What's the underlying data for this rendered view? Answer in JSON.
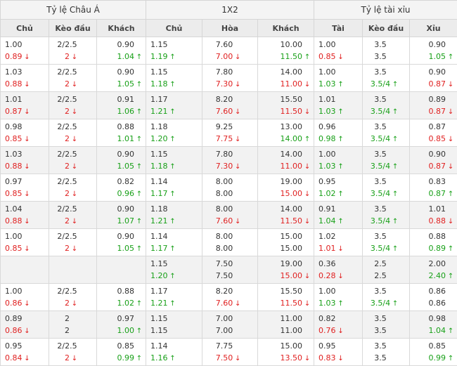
{
  "groups": [
    "Tỷ lệ Châu Á",
    "1X2",
    "Tỷ lệ tài xỉu"
  ],
  "columns": [
    "Chủ",
    "Kèo đầu",
    "Khách",
    "Chủ",
    "Hòa",
    "Khách",
    "Tài",
    "Kèo đầu",
    "Xỉu"
  ],
  "rows": [
    {
      "shade": false,
      "top": [
        "1.00",
        "2/2.5",
        "0.90",
        "1.15",
        "7.60",
        "10.00",
        "1.00",
        "3.5",
        "0.90"
      ],
      "bottom": [
        [
          "0.89",
          "down"
        ],
        [
          "2",
          "down"
        ],
        [
          "1.04",
          "up"
        ],
        [
          "1.19",
          "up"
        ],
        [
          "7.00",
          "down"
        ],
        [
          "11.50",
          "up"
        ],
        [
          "0.85",
          "down"
        ],
        [
          "3.5",
          ""
        ],
        [
          "1.05",
          "up"
        ]
      ]
    },
    {
      "shade": false,
      "top": [
        "1.03",
        "2/2.5",
        "0.90",
        "1.15",
        "7.80",
        "14.00",
        "1.00",
        "3.5",
        "0.90"
      ],
      "bottom": [
        [
          "0.88",
          "down"
        ],
        [
          "2",
          "down"
        ],
        [
          "1.05",
          "up"
        ],
        [
          "1.18",
          "up"
        ],
        [
          "7.30",
          "down"
        ],
        [
          "11.00",
          "down"
        ],
        [
          "1.03",
          "up"
        ],
        [
          "3.5/4",
          "up"
        ],
        [
          "0.87",
          "down"
        ]
      ]
    },
    {
      "shade": true,
      "top": [
        "1.01",
        "2/2.5",
        "0.91",
        "1.17",
        "8.20",
        "15.50",
        "1.01",
        "3.5",
        "0.89"
      ],
      "bottom": [
        [
          "0.87",
          "down"
        ],
        [
          "2",
          "down"
        ],
        [
          "1.06",
          "up"
        ],
        [
          "1.21",
          "up"
        ],
        [
          "7.60",
          "down"
        ],
        [
          "11.50",
          "down"
        ],
        [
          "1.03",
          "up"
        ],
        [
          "3.5/4",
          "up"
        ],
        [
          "0.87",
          "down"
        ]
      ]
    },
    {
      "shade": false,
      "top": [
        "0.98",
        "2/2.5",
        "0.88",
        "1.18",
        "9.25",
        "13.00",
        "0.96",
        "3.5",
        "0.87"
      ],
      "bottom": [
        [
          "0.85",
          "down"
        ],
        [
          "2",
          "down"
        ],
        [
          "1.01",
          "up"
        ],
        [
          "1.20",
          "up"
        ],
        [
          "7.75",
          "down"
        ],
        [
          "14.00",
          "up"
        ],
        [
          "0.98",
          "up"
        ],
        [
          "3.5/4",
          "up"
        ],
        [
          "0.85",
          "down"
        ]
      ]
    },
    {
      "shade": true,
      "top": [
        "1.03",
        "2/2.5",
        "0.90",
        "1.15",
        "7.80",
        "14.00",
        "1.00",
        "3.5",
        "0.90"
      ],
      "bottom": [
        [
          "0.88",
          "down"
        ],
        [
          "2",
          "down"
        ],
        [
          "1.05",
          "up"
        ],
        [
          "1.18",
          "up"
        ],
        [
          "7.30",
          "down"
        ],
        [
          "11.00",
          "down"
        ],
        [
          "1.03",
          "up"
        ],
        [
          "3.5/4",
          "up"
        ],
        [
          "0.87",
          "down"
        ]
      ]
    },
    {
      "shade": false,
      "top": [
        "0.97",
        "2/2.5",
        "0.82",
        "1.14",
        "8.00",
        "19.00",
        "0.95",
        "3.5",
        "0.83"
      ],
      "bottom": [
        [
          "0.85",
          "down"
        ],
        [
          "2",
          "down"
        ],
        [
          "0.96",
          "up"
        ],
        [
          "1.17",
          "up"
        ],
        [
          "8.00",
          ""
        ],
        [
          "15.00",
          "down"
        ],
        [
          "1.02",
          "up"
        ],
        [
          "3.5/4",
          "up"
        ],
        [
          "0.87",
          "up"
        ]
      ]
    },
    {
      "shade": true,
      "top": [
        "1.04",
        "2/2.5",
        "0.90",
        "1.18",
        "8.00",
        "14.00",
        "0.91",
        "3.5",
        "1.01"
      ],
      "bottom": [
        [
          "0.88",
          "down"
        ],
        [
          "2",
          "down"
        ],
        [
          "1.07",
          "up"
        ],
        [
          "1.21",
          "up"
        ],
        [
          "7.60",
          "down"
        ],
        [
          "11.50",
          "down"
        ],
        [
          "1.04",
          "up"
        ],
        [
          "3.5/4",
          "up"
        ],
        [
          "0.88",
          "down"
        ]
      ]
    },
    {
      "shade": false,
      "top": [
        "1.00",
        "2/2.5",
        "0.90",
        "1.14",
        "8.00",
        "15.00",
        "1.02",
        "3.5",
        "0.88"
      ],
      "bottom": [
        [
          "0.85",
          "down"
        ],
        [
          "2",
          "down"
        ],
        [
          "1.05",
          "up"
        ],
        [
          "1.17",
          "up"
        ],
        [
          "8.00",
          ""
        ],
        [
          "15.00",
          ""
        ],
        [
          "1.01",
          "down"
        ],
        [
          "3.5/4",
          "up"
        ],
        [
          "0.89",
          "up"
        ]
      ]
    },
    {
      "shade": true,
      "top": [
        "",
        "",
        "",
        "1.15",
        "7.50",
        "19.00",
        "0.36",
        "2.5",
        "2.00"
      ],
      "bottom": [
        [
          "",
          ""
        ],
        [
          "",
          ""
        ],
        [
          "",
          ""
        ],
        [
          "1.20",
          "up"
        ],
        [
          "7.50",
          ""
        ],
        [
          "15.00",
          "down"
        ],
        [
          "0.28",
          "down"
        ],
        [
          "2.5",
          ""
        ],
        [
          "2.40",
          "up"
        ]
      ]
    },
    {
      "shade": false,
      "top": [
        "1.00",
        "2/2.5",
        "0.88",
        "1.17",
        "8.20",
        "15.50",
        "1.00",
        "3.5",
        "0.86"
      ],
      "bottom": [
        [
          "0.86",
          "down"
        ],
        [
          "2",
          "down"
        ],
        [
          "1.02",
          "up"
        ],
        [
          "1.21",
          "up"
        ],
        [
          "7.60",
          "down"
        ],
        [
          "11.50",
          "down"
        ],
        [
          "1.03",
          "up"
        ],
        [
          "3.5/4",
          "up"
        ],
        [
          "0.86",
          ""
        ]
      ]
    },
    {
      "shade": true,
      "top": [
        "0.89",
        "2",
        "0.97",
        "1.15",
        "7.00",
        "11.00",
        "0.82",
        "3.5",
        "0.98"
      ],
      "bottom": [
        [
          "0.86",
          "down"
        ],
        [
          "2",
          ""
        ],
        [
          "1.00",
          "up"
        ],
        [
          "1.15",
          ""
        ],
        [
          "7.00",
          ""
        ],
        [
          "11.00",
          ""
        ],
        [
          "0.76",
          "down"
        ],
        [
          "3.5",
          ""
        ],
        [
          "1.04",
          "up"
        ]
      ]
    },
    {
      "shade": false,
      "top": [
        "0.95",
        "2/2.5",
        "0.85",
        "1.14",
        "7.75",
        "15.00",
        "0.95",
        "3.5",
        "0.85"
      ],
      "bottom": [
        [
          "0.84",
          "down"
        ],
        [
          "2",
          "down"
        ],
        [
          "0.99",
          "up"
        ],
        [
          "1.16",
          "up"
        ],
        [
          "7.50",
          "down"
        ],
        [
          "13.50",
          "down"
        ],
        [
          "0.83",
          "down"
        ],
        [
          "3.5",
          ""
        ],
        [
          "0.99",
          "up"
        ]
      ]
    }
  ]
}
